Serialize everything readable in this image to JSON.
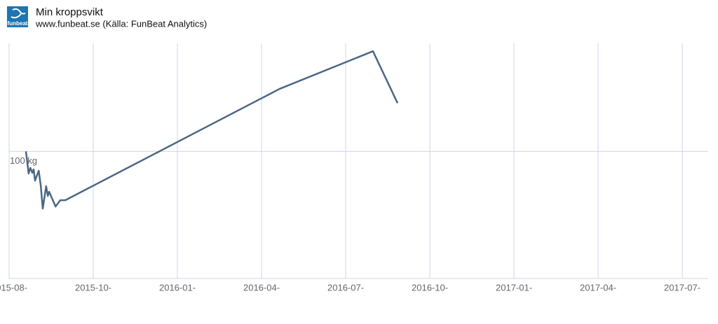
{
  "chart_data": {
    "type": "line",
    "logo_text": "funbeat",
    "title": "Min kroppsvikt",
    "subtitle": "www.funbeat.se (Källa: FunBeat Analytics)",
    "color": "#4b6784",
    "x": [
      2015.55,
      2015.558,
      2015.563,
      2015.569,
      2015.573,
      2015.577,
      2015.588,
      2015.594,
      2015.6,
      2015.61,
      2015.615,
      2015.619,
      2015.638,
      2015.652,
      2015.667,
      2016.304,
      2016.581,
      2016.654
    ],
    "values": [
      100.0,
      99.13,
      99.35,
      99.16,
      99.29,
      98.85,
      99.24,
      98.66,
      97.75,
      98.63,
      98.25,
      98.41,
      97.83,
      98.08,
      98.08,
      102.46,
      103.94,
      101.9
    ],
    "xlim": [
      2015.5,
      2017.577
    ],
    "xticks": [
      {
        "value": 2015.5,
        "label": "2015-08-"
      },
      {
        "value": 2015.75,
        "label": "2015-10-"
      },
      {
        "value": 2016.0,
        "label": "2016-01-"
      },
      {
        "value": 2016.25,
        "label": "2016-04-"
      },
      {
        "value": 2016.5,
        "label": "2016-07-"
      },
      {
        "value": 2016.75,
        "label": "2016-10-"
      },
      {
        "value": 2017.0,
        "label": "2017-01-"
      },
      {
        "value": 2017.25,
        "label": "2017-04-"
      },
      {
        "value": 2017.5,
        "label": "2017-07-"
      }
    ],
    "ylim": [
      95,
      104
    ],
    "yticks": [
      {
        "value": 100,
        "label": "100 kg"
      }
    ],
    "grid": true
  }
}
